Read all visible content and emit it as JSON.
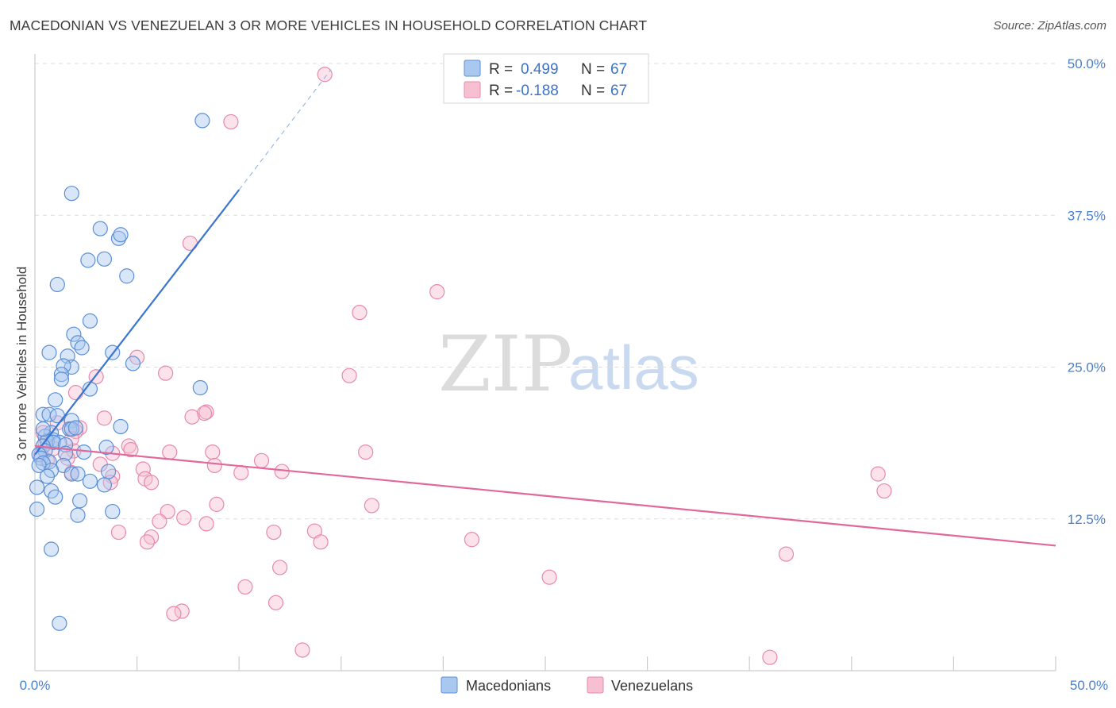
{
  "title": "MACEDONIAN VS VENEZUELAN 3 OR MORE VEHICLES IN HOUSEHOLD CORRELATION CHART",
  "source": "Source: ZipAtlas.com",
  "watermark": {
    "zip": "ZIP",
    "atlas": "atlas"
  },
  "legend": {
    "rows": [
      {
        "r_label": "R =",
        "r_value": "0.499",
        "n_label": "N =",
        "n_value": "67"
      },
      {
        "r_label": "R =",
        "r_value": "-0.188",
        "n_label": "N =",
        "n_value": "67"
      }
    ]
  },
  "bottom_legend": [
    "Macedonians",
    "Venezuelans"
  ],
  "colors": {
    "macedonians_fill": "#a9c8f0",
    "macedonians_stroke": "#5b8fd6",
    "macedonians_line": "#3a75d0",
    "venezuelans_fill": "#f7bfd2",
    "venezuelans_stroke": "#e889aa",
    "venezuelans_line": "#e0689a",
    "grid": "#dddddd",
    "tick_label": "#4a7fcb"
  },
  "chart_data": {
    "type": "scatter",
    "title": "MACEDONIAN VS VENEZUELAN 3 OR MORE VEHICLES IN HOUSEHOLD CORRELATION CHART",
    "xlabel": "",
    "ylabel": "3 or more Vehicles in Household",
    "xlim": [
      0,
      50
    ],
    "ylim": [
      0,
      50
    ],
    "x_tick_labels": [
      "0.0%",
      "50.0%"
    ],
    "y_ticks": [
      12.5,
      25.0,
      37.5,
      50.0
    ],
    "y_tick_labels": [
      "12.5%",
      "25.0%",
      "37.5%",
      "50.0%"
    ],
    "grid": true,
    "legend_position": "top-center",
    "series": [
      {
        "name": "Macedonians",
        "R": 0.499,
        "N": 67,
        "trend": {
          "x": [
            0.0,
            10.0
          ],
          "y": [
            17.8,
            39.6
          ],
          "dashed_extension": {
            "x": [
              10.0,
              14.5
            ],
            "y": [
              39.6,
              49.5
            ]
          }
        },
        "points": [
          [
            8.2,
            45.3
          ],
          [
            1.8,
            39.3
          ],
          [
            3.2,
            36.4
          ],
          [
            4.1,
            35.6
          ],
          [
            4.2,
            35.9
          ],
          [
            2.6,
            33.8
          ],
          [
            3.4,
            33.9
          ],
          [
            4.5,
            32.5
          ],
          [
            1.1,
            31.8
          ],
          [
            2.7,
            28.8
          ],
          [
            1.9,
            27.7
          ],
          [
            2.1,
            27.0
          ],
          [
            2.3,
            26.6
          ],
          [
            0.7,
            26.2
          ],
          [
            3.8,
            26.2
          ],
          [
            1.6,
            25.9
          ],
          [
            4.8,
            25.3
          ],
          [
            1.8,
            25.0
          ],
          [
            1.4,
            25.1
          ],
          [
            1.3,
            24.4
          ],
          [
            1.3,
            24.0
          ],
          [
            2.7,
            23.2
          ],
          [
            8.1,
            23.3
          ],
          [
            1.0,
            22.3
          ],
          [
            0.4,
            21.1
          ],
          [
            0.7,
            21.1
          ],
          [
            1.1,
            21.0
          ],
          [
            1.8,
            20.6
          ],
          [
            4.2,
            20.1
          ],
          [
            1.7,
            19.9
          ],
          [
            1.8,
            19.9
          ],
          [
            2.0,
            20.0
          ],
          [
            0.8,
            19.6
          ],
          [
            0.5,
            19.3
          ],
          [
            0.9,
            19.0
          ],
          [
            0.6,
            18.9
          ],
          [
            1.2,
            18.8
          ],
          [
            0.9,
            18.8
          ],
          [
            0.4,
            18.5
          ],
          [
            1.5,
            18.6
          ],
          [
            3.5,
            18.4
          ],
          [
            0.5,
            18.1
          ],
          [
            2.4,
            18.0
          ],
          [
            1.5,
            17.9
          ],
          [
            0.2,
            17.8
          ],
          [
            0.3,
            17.5
          ],
          [
            0.7,
            17.2
          ],
          [
            0.4,
            17.1
          ],
          [
            0.2,
            16.9
          ],
          [
            1.4,
            16.9
          ],
          [
            0.8,
            16.5
          ],
          [
            3.6,
            16.4
          ],
          [
            1.8,
            16.2
          ],
          [
            2.1,
            16.2
          ],
          [
            0.6,
            16.0
          ],
          [
            2.7,
            15.6
          ],
          [
            3.4,
            15.3
          ],
          [
            0.1,
            15.1
          ],
          [
            0.8,
            14.8
          ],
          [
            2.2,
            14.0
          ],
          [
            0.1,
            13.3
          ],
          [
            3.8,
            13.1
          ],
          [
            2.1,
            12.8
          ],
          [
            0.8,
            10.0
          ],
          [
            1.2,
            3.9
          ],
          [
            1.0,
            14.3
          ],
          [
            0.4,
            19.9
          ]
        ]
      },
      {
        "name": "Venezuelans",
        "R": -0.188,
        "N": 67,
        "trend": {
          "x": [
            0.0,
            50.0
          ],
          "y": [
            18.5,
            10.3
          ]
        },
        "points": [
          [
            14.2,
            49.1
          ],
          [
            9.6,
            45.2
          ],
          [
            7.6,
            35.2
          ],
          [
            19.7,
            31.2
          ],
          [
            15.9,
            29.5
          ],
          [
            5.0,
            25.8
          ],
          [
            3.0,
            24.2
          ],
          [
            6.4,
            24.5
          ],
          [
            15.4,
            24.3
          ],
          [
            2.0,
            22.9
          ],
          [
            8.4,
            21.3
          ],
          [
            8.3,
            21.2
          ],
          [
            7.7,
            20.9
          ],
          [
            3.4,
            20.8
          ],
          [
            1.1,
            20.4
          ],
          [
            2.2,
            20.0
          ],
          [
            1.8,
            19.9
          ],
          [
            2.0,
            19.7
          ],
          [
            0.4,
            19.6
          ],
          [
            1.8,
            19.1
          ],
          [
            0.5,
            18.8
          ],
          [
            4.6,
            18.5
          ],
          [
            0.9,
            18.3
          ],
          [
            4.7,
            18.2
          ],
          [
            1.9,
            18.1
          ],
          [
            6.6,
            18.0
          ],
          [
            8.7,
            18.0
          ],
          [
            16.2,
            18.0
          ],
          [
            3.8,
            17.9
          ],
          [
            0.3,
            17.8
          ],
          [
            1.6,
            17.5
          ],
          [
            11.1,
            17.3
          ],
          [
            0.6,
            17.3
          ],
          [
            3.2,
            17.0
          ],
          [
            8.8,
            16.9
          ],
          [
            5.3,
            16.6
          ],
          [
            12.1,
            16.4
          ],
          [
            10.1,
            16.3
          ],
          [
            1.8,
            16.3
          ],
          [
            3.8,
            16.0
          ],
          [
            5.4,
            15.8
          ],
          [
            5.7,
            15.5
          ],
          [
            3.7,
            15.5
          ],
          [
            41.3,
            16.2
          ],
          [
            41.6,
            14.8
          ],
          [
            16.5,
            13.6
          ],
          [
            8.9,
            13.7
          ],
          [
            6.5,
            13.1
          ],
          [
            7.3,
            12.6
          ],
          [
            6.1,
            12.3
          ],
          [
            8.4,
            12.1
          ],
          [
            11.7,
            11.4
          ],
          [
            13.7,
            11.5
          ],
          [
            4.1,
            11.4
          ],
          [
            5.7,
            11.0
          ],
          [
            5.5,
            10.6
          ],
          [
            14.0,
            10.6
          ],
          [
            21.4,
            10.8
          ],
          [
            36.8,
            9.6
          ],
          [
            12.0,
            8.5
          ],
          [
            25.2,
            7.7
          ],
          [
            10.3,
            6.9
          ],
          [
            11.8,
            5.6
          ],
          [
            7.2,
            4.9
          ],
          [
            6.8,
            4.7
          ],
          [
            13.1,
            1.7
          ],
          [
            36.0,
            1.1
          ]
        ]
      }
    ]
  }
}
